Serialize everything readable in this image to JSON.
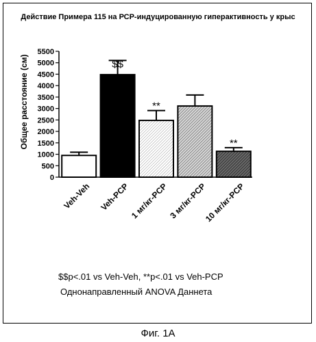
{
  "chart_data": {
    "type": "bar",
    "title": "Действие Примера 115 на РСР-индуцированную гиперактивность у крыс",
    "xlabel": "",
    "ylabel": "Общее расстояние (см)",
    "ylim": [
      0,
      5500
    ],
    "yticks": [
      0,
      500,
      1000,
      1500,
      2000,
      2500,
      3000,
      3500,
      4000,
      4500,
      5000,
      5500
    ],
    "categories": [
      "Veh-Veh",
      "Veh-PCP",
      "1 мг/кг-PCP",
      "3 мг/кг-PCP",
      "10 мг/кг-PCP"
    ],
    "values": [
      950,
      4480,
      2480,
      3110,
      1130
    ],
    "errors": [
      140,
      620,
      430,
      480,
      160
    ],
    "annotations": [
      "",
      "$$",
      "**",
      "",
      "**"
    ],
    "fills": [
      "white",
      "black",
      "light-hatch",
      "medium-hatch",
      "dark-hatch"
    ],
    "grid": false
  },
  "footnote": {
    "line1": "$$p<.01 vs Veh-Veh, **p<.01 vs Veh-PCP",
    "line2": "Однонаправленный ANOVA Даннета"
  },
  "caption": "Фиг. 1А"
}
